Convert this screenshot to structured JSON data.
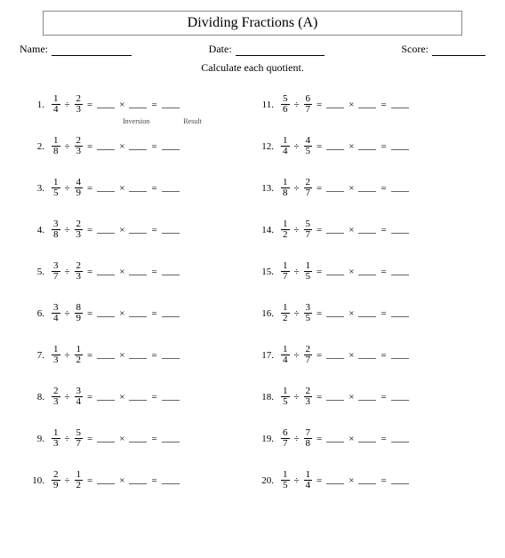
{
  "title": "Dividing Fractions (A)",
  "header": {
    "name_label": "Name:",
    "date_label": "Date:",
    "score_label": "Score:"
  },
  "instruction": "Calculate each quotient.",
  "sublabels": {
    "inversion": "Inversion",
    "result": "Result"
  },
  "symbols": {
    "divide": "÷",
    "times": "×",
    "equals": "="
  },
  "problems": [
    {
      "n": "1.",
      "a_num": "1",
      "a_den": "4",
      "b_num": "2",
      "b_den": "3"
    },
    {
      "n": "2.",
      "a_num": "1",
      "a_den": "8",
      "b_num": "2",
      "b_den": "3"
    },
    {
      "n": "3.",
      "a_num": "1",
      "a_den": "5",
      "b_num": "4",
      "b_den": "9"
    },
    {
      "n": "4.",
      "a_num": "3",
      "a_den": "8",
      "b_num": "2",
      "b_den": "3"
    },
    {
      "n": "5.",
      "a_num": "3",
      "a_den": "7",
      "b_num": "2",
      "b_den": "3"
    },
    {
      "n": "6.",
      "a_num": "3",
      "a_den": "4",
      "b_num": "8",
      "b_den": "9"
    },
    {
      "n": "7.",
      "a_num": "1",
      "a_den": "3",
      "b_num": "1",
      "b_den": "2"
    },
    {
      "n": "8.",
      "a_num": "2",
      "a_den": "3",
      "b_num": "3",
      "b_den": "4"
    },
    {
      "n": "9.",
      "a_num": "1",
      "a_den": "3",
      "b_num": "5",
      "b_den": "7"
    },
    {
      "n": "10.",
      "a_num": "2",
      "a_den": "9",
      "b_num": "1",
      "b_den": "2"
    },
    {
      "n": "11.",
      "a_num": "5",
      "a_den": "6",
      "b_num": "6",
      "b_den": "7"
    },
    {
      "n": "12.",
      "a_num": "1",
      "a_den": "4",
      "b_num": "4",
      "b_den": "5"
    },
    {
      "n": "13.",
      "a_num": "1",
      "a_den": "8",
      "b_num": "2",
      "b_den": "7"
    },
    {
      "n": "14.",
      "a_num": "1",
      "a_den": "2",
      "b_num": "5",
      "b_den": "7"
    },
    {
      "n": "15.",
      "a_num": "1",
      "a_den": "7",
      "b_num": "1",
      "b_den": "5"
    },
    {
      "n": "16.",
      "a_num": "1",
      "a_den": "2",
      "b_num": "3",
      "b_den": "5"
    },
    {
      "n": "17.",
      "a_num": "1",
      "a_den": "4",
      "b_num": "2",
      "b_den": "7"
    },
    {
      "n": "18.",
      "a_num": "1",
      "a_den": "5",
      "b_num": "2",
      "b_den": "3"
    },
    {
      "n": "19.",
      "a_num": "6",
      "a_den": "7",
      "b_num": "7",
      "b_den": "8"
    },
    {
      "n": "20.",
      "a_num": "1",
      "a_den": "5",
      "b_num": "1",
      "b_den": "4"
    }
  ]
}
